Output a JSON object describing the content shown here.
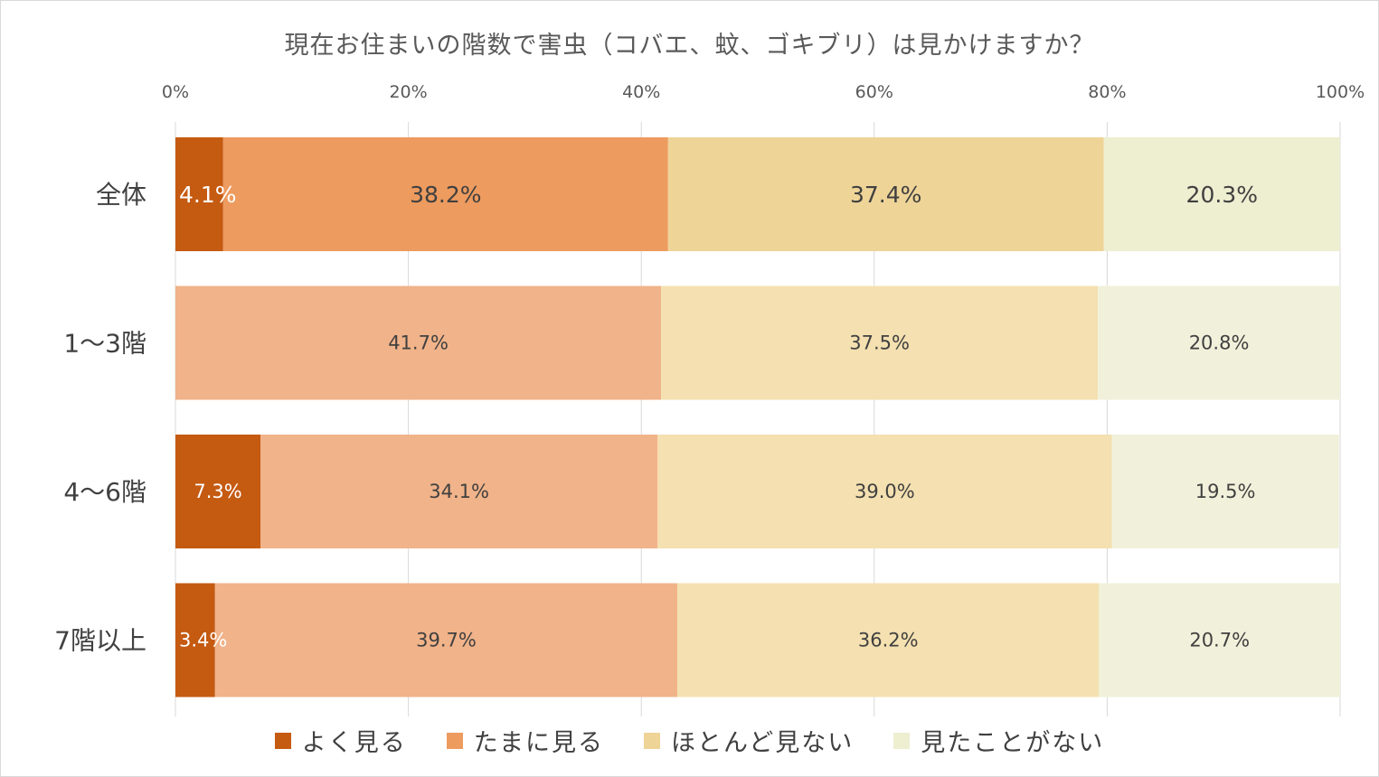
{
  "chart_data": {
    "type": "bar",
    "orientation": "horizontal",
    "stacked": "percent",
    "title": "現在お住まいの階数で害虫（コバエ、蚊、ゴキブリ）は見かけますか？",
    "categories": [
      "全体",
      "1～3階",
      "4～6階",
      "7階以上"
    ],
    "series": [
      {
        "name": "よく見る",
        "values": [
          4.1,
          0,
          7.3,
          3.4
        ]
      },
      {
        "name": "たまに見る",
        "values": [
          38.2,
          41.7,
          34.1,
          39.7
        ]
      },
      {
        "name": "ほとんど見ない",
        "values": [
          37.4,
          37.5,
          39.0,
          36.2
        ]
      },
      {
        "name": "見たことがない",
        "values": [
          20.3,
          20.8,
          19.5,
          20.7
        ]
      }
    ],
    "xlim": [
      0,
      100
    ],
    "x_ticks": [
      "0%",
      "20%",
      "40%",
      "60%",
      "80%",
      "100%"
    ],
    "grid": true,
    "legend_position": "bottom",
    "highlight_category": "全体",
    "colors": {
      "highlight": [
        "#c55a11",
        "#ed9b5f",
        "#efd498",
        "#eeeed1"
      ],
      "normal": [
        "#c55a11",
        "#f1b389",
        "#f4e0b0",
        "#f1f1db"
      ]
    }
  }
}
